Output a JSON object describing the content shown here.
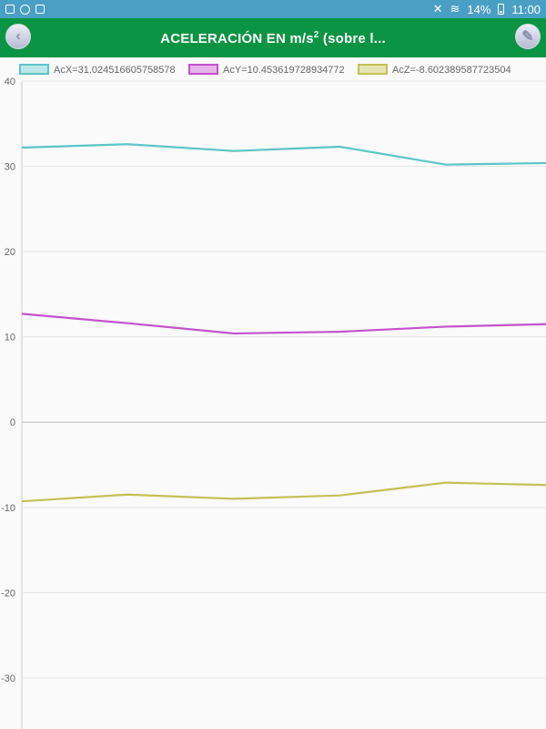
{
  "status_bar": {
    "battery": "14%",
    "time": "11:00",
    "icons": [
      "image-icon",
      "notification-icon",
      "file-icon",
      "mute-icon",
      "wifi-icon",
      "battery-icon"
    ]
  },
  "app_bar": {
    "title": "ACELERACIÓN EN m/s",
    "title_sup": "2",
    "title_suffix": " (sobre l...",
    "back_icon": "chevron-left-icon",
    "edit_icon": "pencil-icon"
  },
  "chart_data": {
    "type": "line",
    "ylim": [
      -36,
      40
    ],
    "yticks": [
      40,
      30,
      20,
      10,
      0,
      -10,
      -20,
      -30
    ],
    "ytick_labels": [
      "40",
      "30",
      "20",
      "10",
      "0",
      "-10",
      "-20",
      "-30"
    ],
    "x": [
      0,
      1,
      2,
      3,
      4,
      5
    ],
    "grid": true,
    "legend": "top",
    "series": [
      {
        "name": "AcX=31.024516605758578",
        "color": "#5bc5c8",
        "fill": "#bde7e8",
        "values": [
          32.2,
          32.6,
          31.8,
          32.3,
          30.2,
          30.4
        ]
      },
      {
        "name": "AcY=10.453619728934772",
        "color": "#c451cc",
        "fill": "#e6b4ea",
        "values": [
          12.7,
          11.6,
          10.4,
          10.6,
          11.2,
          11.5
        ]
      },
      {
        "name": "AcZ=-8.602389587723504",
        "color": "#c4c054",
        "fill": "#e6e4b4",
        "values": [
          -9.3,
          -8.5,
          -9.0,
          -8.6,
          -7.1,
          -7.4
        ]
      }
    ]
  }
}
